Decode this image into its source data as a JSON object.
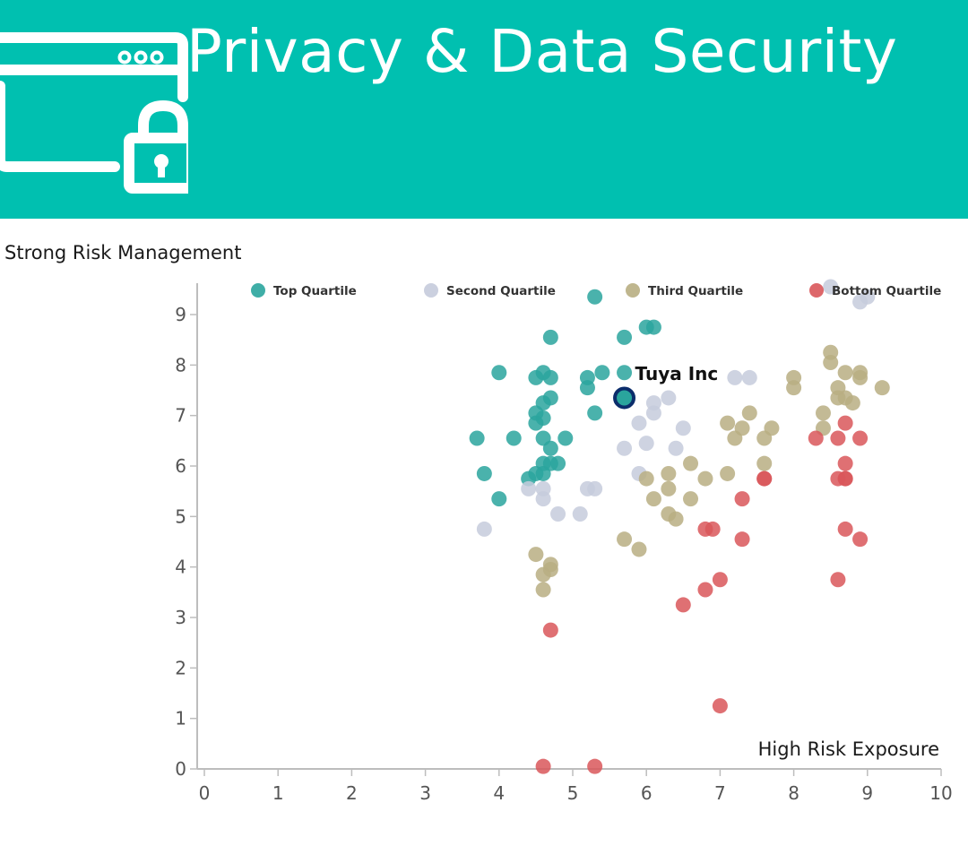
{
  "header": {
    "title": "Privacy & Data Security"
  },
  "colors": {
    "banner": "#00c0b0",
    "top": "#2aa59d",
    "second": "#c5cbdc",
    "third": "#b8ae82",
    "bottom": "#d9575a",
    "highlight_ring": "#0b2d6b"
  },
  "icons": {
    "browser": "browser-window-icon",
    "lock": "padlock-icon"
  },
  "chart_data": {
    "type": "scatter",
    "title": "",
    "ylabel": "Strong Risk Management",
    "xlabel": "High Risk Exposure",
    "xlim": [
      0,
      10
    ],
    "ylim": [
      0,
      9.6
    ],
    "xticks": [
      "0",
      "1",
      "2",
      "3",
      "4",
      "5",
      "6",
      "7",
      "8",
      "9",
      "10"
    ],
    "yticks": [
      "0",
      "1",
      "2",
      "3",
      "4",
      "5",
      "6",
      "7",
      "8",
      "9"
    ],
    "legend_position": "top",
    "highlight": {
      "label": "Tuya Inc",
      "x": 5.7,
      "y": 7.35
    },
    "series": [
      {
        "name": "Top Quartile",
        "key": "top",
        "points": [
          [
            3.7,
            6.55
          ],
          [
            3.8,
            5.85
          ],
          [
            4.0,
            7.85
          ],
          [
            4.0,
            5.35
          ],
          [
            4.2,
            6.55
          ],
          [
            4.4,
            5.75
          ],
          [
            4.5,
            5.85
          ],
          [
            4.5,
            7.75
          ],
          [
            4.5,
            7.05
          ],
          [
            4.5,
            6.85
          ],
          [
            4.6,
            7.85
          ],
          [
            4.6,
            6.95
          ],
          [
            4.6,
            7.25
          ],
          [
            4.6,
            6.55
          ],
          [
            4.6,
            6.05
          ],
          [
            4.6,
            5.85
          ],
          [
            4.7,
            8.55
          ],
          [
            4.7,
            7.75
          ],
          [
            4.7,
            7.35
          ],
          [
            4.7,
            6.35
          ],
          [
            4.7,
            6.05
          ],
          [
            4.8,
            6.05
          ],
          [
            4.9,
            6.55
          ],
          [
            5.2,
            7.75
          ],
          [
            5.2,
            7.55
          ],
          [
            5.3,
            9.35
          ],
          [
            5.3,
            7.05
          ],
          [
            5.4,
            7.85
          ],
          [
            5.7,
            8.55
          ],
          [
            5.7,
            7.85
          ],
          [
            5.7,
            7.35
          ],
          [
            6.0,
            8.75
          ],
          [
            6.1,
            8.75
          ]
        ]
      },
      {
        "name": "Second Quartile",
        "key": "second",
        "points": [
          [
            3.8,
            4.75
          ],
          [
            4.4,
            5.55
          ],
          [
            4.6,
            5.55
          ],
          [
            4.6,
            5.35
          ],
          [
            4.8,
            5.05
          ],
          [
            5.1,
            5.05
          ],
          [
            5.2,
            5.55
          ],
          [
            5.3,
            5.55
          ],
          [
            5.7,
            6.35
          ],
          [
            5.9,
            6.85
          ],
          [
            5.9,
            5.85
          ],
          [
            6.0,
            6.45
          ],
          [
            6.1,
            7.05
          ],
          [
            6.1,
            7.25
          ],
          [
            6.3,
            7.35
          ],
          [
            6.4,
            6.35
          ],
          [
            6.5,
            6.75
          ],
          [
            7.2,
            7.75
          ],
          [
            7.4,
            7.75
          ],
          [
            8.5,
            9.55
          ],
          [
            8.9,
            9.25
          ],
          [
            9.0,
            9.35
          ]
        ]
      },
      {
        "name": "Third Quartile",
        "key": "third",
        "points": [
          [
            4.5,
            4.25
          ],
          [
            4.6,
            3.85
          ],
          [
            4.6,
            3.55
          ],
          [
            4.7,
            4.05
          ],
          [
            4.7,
            3.95
          ],
          [
            5.7,
            4.55
          ],
          [
            5.9,
            4.35
          ],
          [
            6.0,
            5.75
          ],
          [
            6.1,
            5.35
          ],
          [
            6.3,
            5.85
          ],
          [
            6.3,
            5.55
          ],
          [
            6.3,
            5.05
          ],
          [
            6.4,
            4.95
          ],
          [
            6.6,
            6.05
          ],
          [
            6.6,
            5.35
          ],
          [
            6.8,
            5.75
          ],
          [
            7.1,
            6.85
          ],
          [
            7.1,
            5.85
          ],
          [
            7.2,
            6.55
          ],
          [
            7.3,
            6.75
          ],
          [
            7.4,
            7.05
          ],
          [
            7.6,
            6.55
          ],
          [
            7.6,
            6.05
          ],
          [
            7.7,
            6.75
          ],
          [
            8.0,
            7.75
          ],
          [
            8.0,
            7.55
          ],
          [
            8.4,
            7.05
          ],
          [
            8.4,
            6.75
          ],
          [
            8.5,
            8.25
          ],
          [
            8.5,
            8.05
          ],
          [
            8.6,
            7.55
          ],
          [
            8.6,
            7.35
          ],
          [
            8.7,
            7.85
          ],
          [
            8.7,
            7.35
          ],
          [
            8.8,
            7.25
          ],
          [
            8.9,
            7.85
          ],
          [
            8.9,
            7.75
          ],
          [
            9.2,
            7.55
          ]
        ]
      },
      {
        "name": "Bottom Quartile",
        "key": "bottom",
        "points": [
          [
            4.6,
            0.05
          ],
          [
            4.7,
            2.75
          ],
          [
            5.3,
            0.05
          ],
          [
            6.5,
            3.25
          ],
          [
            6.8,
            4.75
          ],
          [
            6.8,
            3.55
          ],
          [
            6.9,
            4.75
          ],
          [
            7.0,
            3.75
          ],
          [
            7.0,
            1.25
          ],
          [
            7.3,
            5.35
          ],
          [
            7.3,
            4.55
          ],
          [
            7.6,
            5.75
          ],
          [
            7.6,
            5.75
          ],
          [
            8.3,
            6.55
          ],
          [
            8.6,
            6.55
          ],
          [
            8.6,
            5.75
          ],
          [
            8.6,
            3.75
          ],
          [
            8.7,
            6.85
          ],
          [
            8.7,
            6.05
          ],
          [
            8.7,
            5.75
          ],
          [
            8.7,
            5.75
          ],
          [
            8.7,
            4.75
          ],
          [
            8.9,
            6.55
          ],
          [
            8.9,
            4.55
          ]
        ]
      }
    ]
  }
}
